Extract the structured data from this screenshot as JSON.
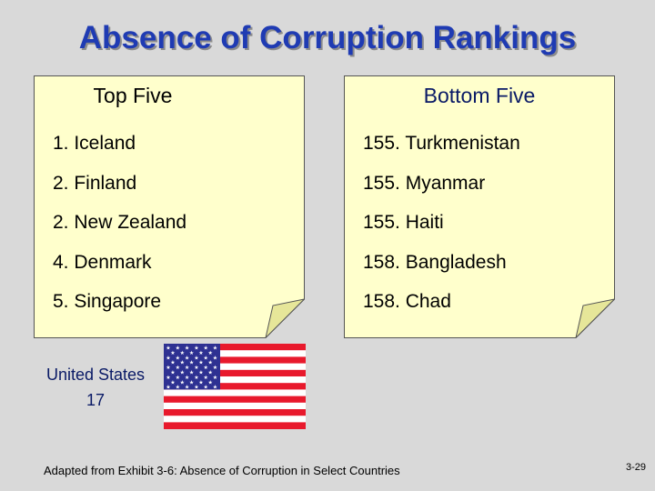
{
  "slide": {
    "title": "Absence of Corruption Rankings",
    "top_five": {
      "header": "Top Five",
      "items": [
        "1. Iceland",
        "2. Finland",
        "2. New Zealand",
        "4. Denmark",
        "5. Singapore"
      ]
    },
    "bottom_five": {
      "header": "Bottom Five",
      "items": [
        "155. Turkmenistan",
        "155. Myanmar",
        "155. Haiti",
        "158. Bangladesh",
        "158. Chad"
      ]
    },
    "us_ranking": {
      "country": "United States",
      "rank": "17"
    },
    "source": "Adapted from Exhibit 3-6: Absence of Corruption in Select Countries",
    "page_number": "3-29"
  },
  "colors": {
    "background": "#d9d9d9",
    "title": "#1f3bb3",
    "note_paper": "#ffffcc",
    "note_curl": "#e6e699",
    "flag_red": "#e8192c",
    "flag_blue": "#2e3192"
  }
}
